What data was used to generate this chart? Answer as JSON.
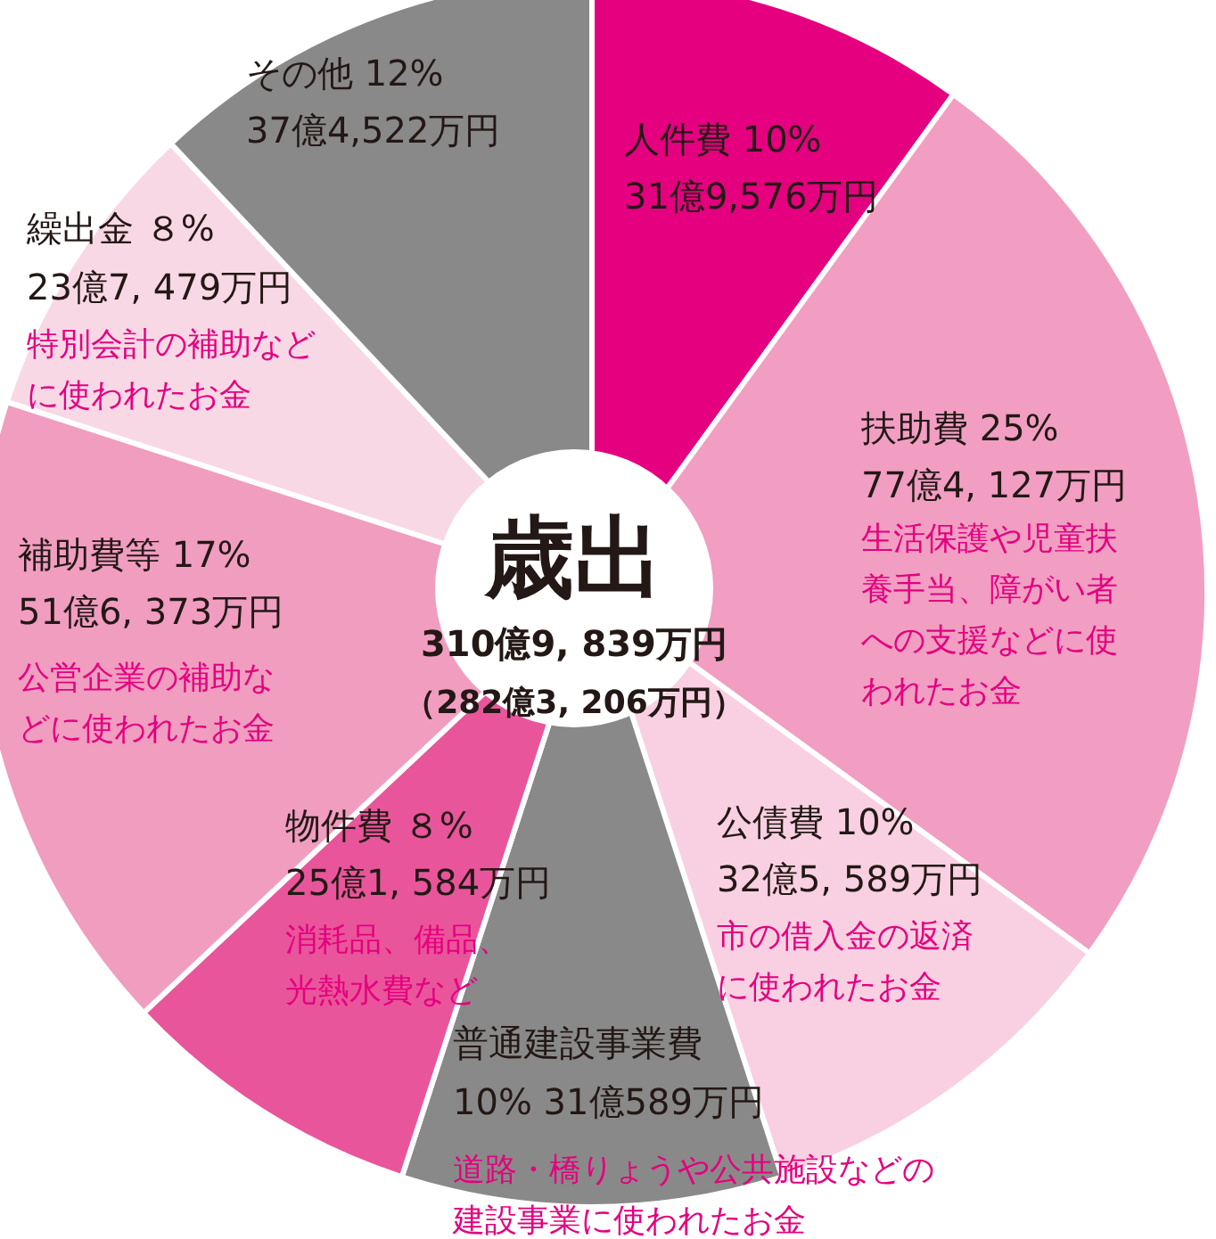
{
  "chart_data": {
    "type": "pie",
    "title": "歳出",
    "subtitle": "310億9, 839万円",
    "categories": [
      "人件費",
      "扶助費",
      "公債費",
      "普通建設事業費",
      "物件費",
      "補助費等",
      "繰出金",
      "その他"
    ],
    "values": [
      10,
      25,
      10,
      10,
      8,
      17,
      8,
      12
    ],
    "value_labels": [
      "10%",
      "25%",
      "10%",
      "10%",
      "８%",
      "17%",
      "８%",
      "12%"
    ],
    "colors": [
      "#e4007f",
      "#f19ec2",
      "#f8d0e1",
      "#898989",
      "#e9559a",
      "#f09dc0",
      "#f9d8e6",
      "#898989"
    ],
    "annotations": [
      "31億9,576万円",
      "77億4, 127万円",
      "生活保護や児童扶養手当、障がい者への支援などに使われたお金",
      "32億5, 589万円",
      "市の借入金の返済に使われたお金",
      "31億589万円",
      "道路・橋りょうや公共施設などの建設事業に使われたお金",
      "25億1, 584万円",
      "消耗品、備品、光熱水費など",
      "51億6, 373万円",
      "公営企業の補助などに使われたお金",
      "23億7, 479万円",
      "特別会計の補助などに使われたお金",
      "37億4,522万円",
      "（282億3, 206万円）"
    ]
  }
}
